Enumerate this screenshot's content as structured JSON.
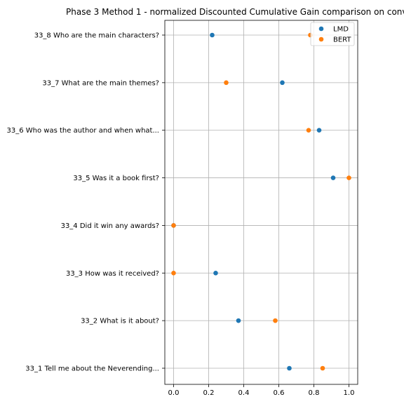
{
  "chart_data": {
    "type": "scatter",
    "title": "Phase 3 Method 1 - normalized Discounted Cumulative Gain comparison on conv",
    "xlabel": "",
    "ylabel": "",
    "xlim": [
      -0.05,
      1.05
    ],
    "xticks": [
      0.0,
      0.2,
      0.4,
      0.6,
      0.8,
      1.0
    ],
    "xtick_labels": [
      "0.0",
      "0.2",
      "0.4",
      "0.6",
      "0.8",
      "1.0"
    ],
    "grid": true,
    "legend_position": "top-right",
    "categories": [
      "33_8 Who are the main characters?",
      "33_7 What are the main themes?",
      "33_6 Who was the author and when what...",
      "33_5 Was it a book first?",
      "33_4 Did it win any awards?",
      "33_3 How was it received?",
      "33_2 What is it about?",
      "33_1 Tell me about the Neverending..."
    ],
    "series": [
      {
        "name": "LMD",
        "color": "#1f77b4",
        "values": [
          0.22,
          0.62,
          0.83,
          0.91,
          0.0,
          0.24,
          0.37,
          0.66
        ]
      },
      {
        "name": "BERT",
        "color": "#ff7f0e",
        "values": [
          0.78,
          0.3,
          0.77,
          1.0,
          0.0,
          0.0,
          0.58,
          0.85
        ]
      }
    ]
  }
}
